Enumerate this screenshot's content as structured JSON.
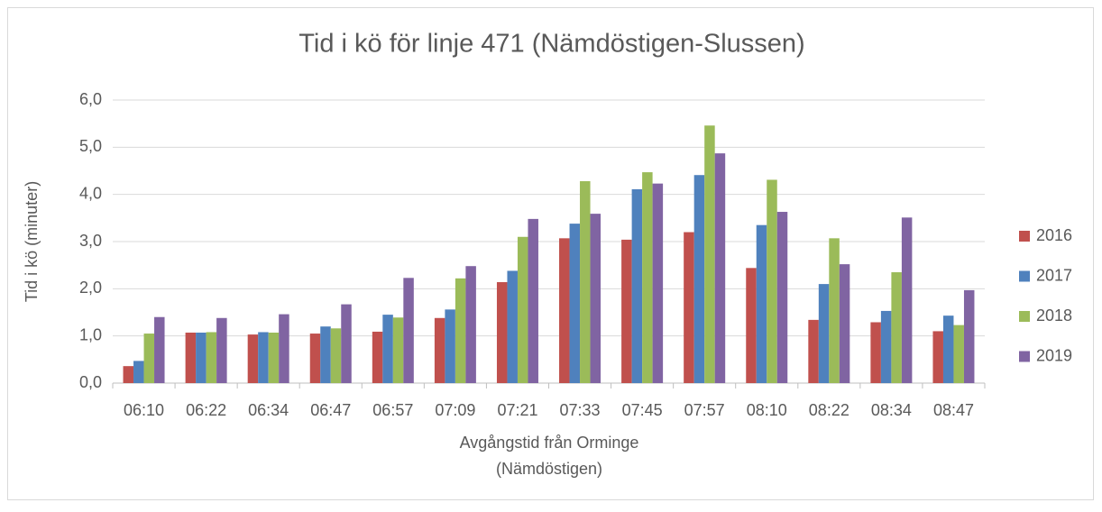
{
  "chart_data": {
    "type": "bar",
    "title": "Tid i kö för linje 471 (Nämdöstigen-Slussen)",
    "y_label": "Tid i kö (minuter)",
    "x_label": [
      "Avgångstid från Orminge",
      "(Nämdöstigen)"
    ],
    "categories": [
      "06:10",
      "06:22",
      "06:34",
      "06:47",
      "06:57",
      "07:09",
      "07:21",
      "07:33",
      "07:45",
      "07:57",
      "08:10",
      "08:22",
      "08:34",
      "08:47"
    ],
    "series": [
      {
        "name": "2016",
        "color": "#c0504d",
        "values": [
          0.36,
          1.07,
          1.03,
          1.05,
          1.09,
          1.38,
          2.14,
          3.07,
          3.04,
          3.2,
          2.44,
          1.34,
          1.29,
          1.1
        ]
      },
      {
        "name": "2017",
        "color": "#4f81bd",
        "values": [
          0.47,
          1.07,
          1.08,
          1.2,
          1.45,
          1.56,
          2.38,
          3.38,
          4.11,
          4.41,
          3.35,
          2.1,
          1.53,
          1.43
        ]
      },
      {
        "name": "2018",
        "color": "#9bbb59",
        "values": [
          1.05,
          1.08,
          1.07,
          1.16,
          1.39,
          2.22,
          3.1,
          4.28,
          4.47,
          5.46,
          4.31,
          3.07,
          2.35,
          1.23
        ]
      },
      {
        "name": "2019",
        "color": "#8064a2",
        "values": [
          1.4,
          1.38,
          1.46,
          1.67,
          2.23,
          2.48,
          3.48,
          3.59,
          4.23,
          4.87,
          3.63,
          2.52,
          3.51,
          1.97
        ]
      }
    ],
    "ylim": [
      0,
      6
    ],
    "yticks": [
      {
        "value": 0,
        "label": "0,0"
      },
      {
        "value": 1,
        "label": "1,0"
      },
      {
        "value": 2,
        "label": "2,0"
      },
      {
        "value": 3,
        "label": "3,0"
      },
      {
        "value": 4,
        "label": "4,0"
      },
      {
        "value": 5,
        "label": "5,0"
      },
      {
        "value": 6,
        "label": "6,0"
      }
    ],
    "grid": true,
    "legend": "right"
  }
}
